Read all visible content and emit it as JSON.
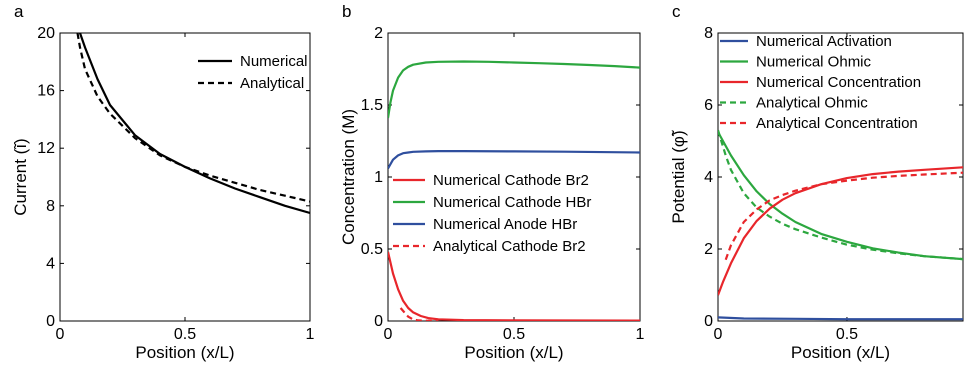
{
  "chart_data": [
    {
      "type": "line",
      "panel": "a",
      "xlabel": "Position (x/L)",
      "ylabel": "Current (ĩ)",
      "xlim": [
        0,
        1
      ],
      "ylim": [
        0,
        20
      ],
      "xticks": [
        0,
        0.5,
        1
      ],
      "xtick_labels": [
        "0",
        "0.5",
        "1"
      ],
      "yticks": [
        0,
        4,
        8,
        12,
        16,
        20
      ],
      "ytick_labels": [
        "0",
        "4",
        "8",
        "12",
        "16",
        "20"
      ],
      "grid": false,
      "legend": "top-right",
      "series": [
        {
          "name": "Numerical",
          "color": "#000000",
          "style": "solid",
          "x": [
            0.08,
            0.1,
            0.15,
            0.2,
            0.3,
            0.4,
            0.5,
            0.6,
            0.7,
            0.8,
            0.9,
            1.0
          ],
          "y": [
            20.0,
            19.0,
            16.8,
            15.0,
            12.9,
            11.6,
            10.7,
            9.9,
            9.2,
            8.6,
            8.0,
            7.5
          ]
        },
        {
          "name": "Analytical",
          "color": "#000000",
          "style": "dashed",
          "x": [
            0.07,
            0.08,
            0.1,
            0.15,
            0.2,
            0.3,
            0.4,
            0.5,
            0.6,
            0.7,
            0.8,
            0.9,
            1.0
          ],
          "y": [
            20.0,
            19.0,
            17.5,
            15.6,
            14.4,
            12.7,
            11.5,
            10.7,
            10.1,
            9.6,
            9.1,
            8.7,
            8.3
          ]
        }
      ]
    },
    {
      "type": "line",
      "panel": "b",
      "xlabel": "Position (x/L)",
      "ylabel": "Concentration (M)",
      "xlim": [
        0,
        1
      ],
      "ylim": [
        0,
        2
      ],
      "xticks": [
        0,
        0.5,
        1
      ],
      "xtick_labels": [
        "0",
        "0.5",
        "1"
      ],
      "yticks": [
        0,
        0.5,
        1,
        1.5,
        2
      ],
      "ytick_labels": [
        "0",
        "0.5",
        "1",
        "1.5",
        "2"
      ],
      "grid": false,
      "legend": "center-right",
      "series": [
        {
          "name": "Numerical Cathode Br2",
          "color": "#e8262b",
          "style": "solid",
          "x": [
            0,
            0.02,
            0.04,
            0.06,
            0.08,
            0.1,
            0.13,
            0.16,
            0.2,
            0.3,
            0.5,
            1.0
          ],
          "y": [
            0.48,
            0.33,
            0.22,
            0.14,
            0.09,
            0.06,
            0.035,
            0.02,
            0.012,
            0.006,
            0.004,
            0.003
          ]
        },
        {
          "name": "Numerical Cathode HBr",
          "color": "#2ca73f",
          "style": "solid",
          "x": [
            0,
            0.01,
            0.02,
            0.04,
            0.06,
            0.08,
            0.1,
            0.15,
            0.2,
            0.3,
            0.4,
            0.5,
            0.6,
            0.7,
            0.8,
            0.9,
            1.0
          ],
          "y": [
            1.41,
            1.52,
            1.6,
            1.69,
            1.74,
            1.765,
            1.78,
            1.795,
            1.8,
            1.802,
            1.8,
            1.795,
            1.79,
            1.785,
            1.778,
            1.77,
            1.76
          ]
        },
        {
          "name": "Numerical Anode HBr",
          "color": "#2f4f9e",
          "style": "solid",
          "x": [
            0,
            0.02,
            0.04,
            0.06,
            0.08,
            0.1,
            0.15,
            0.2,
            0.3,
            0.5,
            0.7,
            1.0
          ],
          "y": [
            1.06,
            1.12,
            1.15,
            1.165,
            1.17,
            1.175,
            1.178,
            1.18,
            1.18,
            1.178,
            1.176,
            1.17
          ]
        },
        {
          "name": "Analytical Cathode Br2",
          "color": "#e8262b",
          "style": "dashed",
          "x": [
            0.05,
            0.06,
            0.07,
            0.08,
            0.09,
            0.1,
            0.12,
            0.15,
            0.2
          ],
          "y": [
            0.09,
            0.07,
            0.05,
            0.03,
            0.02,
            0.01,
            0.004,
            0.002,
            0.001
          ]
        }
      ]
    },
    {
      "type": "line",
      "panel": "c",
      "xlabel": "Position (x/L)",
      "ylabel": "Potential (φ̃)",
      "xlim": [
        0,
        0.95
      ],
      "ylim": [
        0,
        8
      ],
      "xticks": [
        0,
        0.5
      ],
      "xtick_labels": [
        "0",
        "0.5"
      ],
      "yticks": [
        0,
        2,
        4,
        6,
        8
      ],
      "ytick_labels": [
        "0",
        "2",
        "4",
        "6",
        "8"
      ],
      "grid": false,
      "legend": "top-right",
      "series": [
        {
          "name": "Numerical Activation",
          "color": "#2f4f9e",
          "style": "solid",
          "x": [
            0,
            0.1,
            0.3,
            0.5,
            0.7,
            0.95
          ],
          "y": [
            0.1,
            0.07,
            0.06,
            0.05,
            0.05,
            0.05
          ]
        },
        {
          "name": "Numerical Ohmic",
          "color": "#2ca73f",
          "style": "solid",
          "x": [
            0,
            0.05,
            0.1,
            0.15,
            0.2,
            0.25,
            0.3,
            0.4,
            0.5,
            0.6,
            0.7,
            0.8,
            0.95
          ],
          "y": [
            5.25,
            4.6,
            4.05,
            3.6,
            3.25,
            2.98,
            2.75,
            2.42,
            2.2,
            2.02,
            1.9,
            1.8,
            1.72
          ]
        },
        {
          "name": "Numerical Concentration",
          "color": "#e8262b",
          "style": "solid",
          "x": [
            0,
            0.02,
            0.05,
            0.1,
            0.15,
            0.2,
            0.25,
            0.3,
            0.4,
            0.5,
            0.6,
            0.7,
            0.8,
            0.95
          ],
          "y": [
            0.72,
            1.1,
            1.6,
            2.3,
            2.78,
            3.12,
            3.37,
            3.55,
            3.8,
            3.97,
            4.08,
            4.15,
            4.2,
            4.27
          ]
        },
        {
          "name": "Analytical Ohmic",
          "color": "#2ca73f",
          "style": "dashed",
          "x": [
            0,
            0.03,
            0.05,
            0.1,
            0.15,
            0.2,
            0.25,
            0.3,
            0.4,
            0.5,
            0.6,
            0.7,
            0.8,
            0.95
          ],
          "y": [
            5.3,
            4.6,
            4.2,
            3.55,
            3.15,
            2.9,
            2.7,
            2.55,
            2.32,
            2.12,
            1.98,
            1.88,
            1.8,
            1.72
          ]
        },
        {
          "name": "Analytical Concentration",
          "color": "#e8262b",
          "style": "dashed",
          "x": [
            0.03,
            0.05,
            0.1,
            0.15,
            0.2,
            0.25,
            0.3,
            0.4,
            0.5,
            0.6,
            0.7,
            0.8,
            0.95
          ],
          "y": [
            1.7,
            2.1,
            2.75,
            3.1,
            3.35,
            3.5,
            3.62,
            3.8,
            3.9,
            3.98,
            4.03,
            4.07,
            4.12
          ]
        }
      ]
    }
  ]
}
